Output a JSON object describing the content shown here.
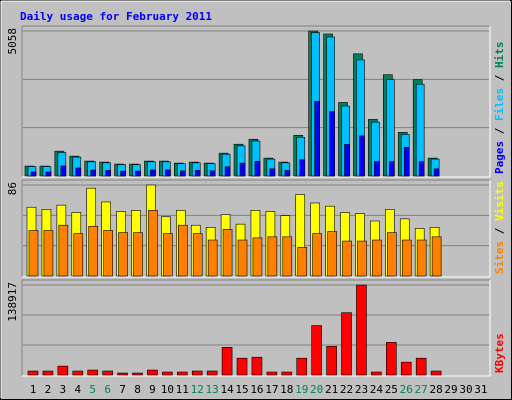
{
  "chart_data": [
    {
      "type": "bar",
      "title": "Daily usage for February 2011",
      "ylim": [
        0,
        5058
      ],
      "yticks": [
        5058
      ],
      "series": [
        {
          "name": "Hits",
          "color": "#00805c",
          "values": [
            346,
            346,
            866,
            693,
            520,
            485,
            416,
            416,
            520,
            520,
            450,
            485,
            450,
            797,
            1109,
            1282,
            624,
            485,
            1420,
            5058,
            4954,
            2564,
            4261,
            1975,
            3534,
            1524,
            3361,
            624,
            null,
            null,
            null
          ]
        },
        {
          "name": "Files",
          "color": "#00c0ff",
          "values": [
            330,
            330,
            820,
            660,
            495,
            460,
            395,
            395,
            495,
            495,
            430,
            460,
            430,
            760,
            1050,
            1220,
            590,
            460,
            1350,
            5000,
            4850,
            2440,
            4050,
            1880,
            3360,
            1450,
            3200,
            590,
            null,
            null,
            null
          ]
        },
        {
          "name": "Pages",
          "color": "#0000ff",
          "values": [
            140,
            140,
            350,
            280,
            210,
            195,
            170,
            170,
            210,
            210,
            180,
            195,
            180,
            320,
            450,
            510,
            250,
            195,
            570,
            2600,
            2250,
            1100,
            1400,
            500,
            500,
            1000,
            500,
            250,
            null,
            null,
            null
          ]
        }
      ]
    },
    {
      "type": "bar",
      "ylim": [
        0,
        86
      ],
      "yticks": [
        86
      ],
      "series": [
        {
          "name": "Visits",
          "color": "#ffff00",
          "values": [
            65,
            63,
            67,
            60,
            83,
            70,
            61,
            62,
            86,
            56,
            62,
            48,
            46,
            58,
            49,
            62,
            61,
            57,
            77,
            69,
            66,
            60,
            59,
            52,
            63,
            54,
            45,
            46,
            null,
            null,
            null
          ]
        },
        {
          "name": "Sites",
          "color": "#ff8000",
          "values": [
            43,
            43,
            48,
            40,
            47,
            43,
            41,
            41,
            62,
            40,
            48,
            40,
            34,
            44,
            34,
            36,
            37,
            37,
            27,
            40,
            42,
            33,
            33,
            34,
            41,
            34,
            34,
            37,
            null,
            null,
            null
          ]
        }
      ]
    },
    {
      "type": "bar",
      "ylim": [
        0,
        138917
      ],
      "yticks": [
        138917
      ],
      "categories": [
        "1",
        "2",
        "3",
        "4",
        "5",
        "6",
        "7",
        "8",
        "9",
        "10",
        "11",
        "12",
        "13",
        "14",
        "15",
        "16",
        "17",
        "18",
        "19",
        "20",
        "21",
        "22",
        "23",
        "24",
        "25",
        "26",
        "27",
        "28",
        "29",
        "30",
        "31"
      ],
      "category_colors": [
        "#000000",
        "#000000",
        "#000000",
        "#000000",
        "#00805c",
        "#00805c",
        "#000000",
        "#000000",
        "#000000",
        "#000000",
        "#000000",
        "#00805c",
        "#00805c",
        "#000000",
        "#000000",
        "#000000",
        "#000000",
        "#000000",
        "#00805c",
        "#00805c",
        "#000000",
        "#000000",
        "#000000",
        "#000000",
        "#000000",
        "#00805c",
        "#00805c",
        "#000000",
        "#000000",
        "#000000",
        "#000000"
      ],
      "series": [
        {
          "name": "KBytes",
          "color": "#ff0000",
          "values": [
            6106,
            6106,
            13740,
            6106,
            7633,
            6106,
            3053,
            3053,
            7633,
            4580,
            4580,
            6106,
            6106,
            42744,
            25952,
            27479,
            4580,
            4580,
            25952,
            76328,
            44270,
            96170,
            138917,
            4580,
            50376,
            19845,
            25952,
            6106,
            null,
            null,
            null
          ]
        }
      ]
    }
  ]
}
